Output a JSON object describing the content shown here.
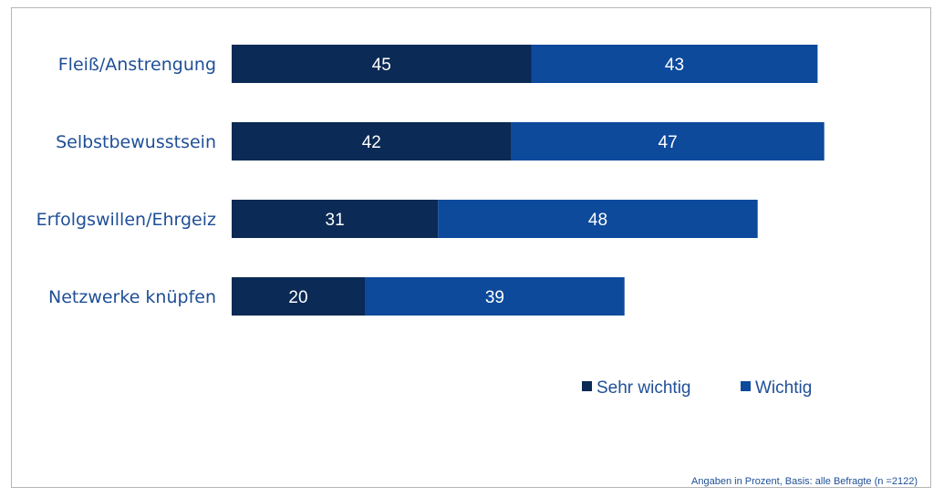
{
  "chart_data": {
    "type": "bar",
    "orientation": "horizontal",
    "stacked": true,
    "categories": [
      "Fleiß/Anstrengung",
      "Selbstbewusstsein",
      "Erfolgswillen/Ehrgeiz",
      "Netzwerke knüpfen"
    ],
    "series": [
      {
        "name": "Sehr wichtig",
        "values": [
          45,
          42,
          31,
          20
        ],
        "color": "#0b2a55"
      },
      {
        "name": "Wichtig",
        "values": [
          43,
          47,
          48,
          39
        ],
        "color": "#0d4a9c"
      }
    ],
    "xlim": [
      0,
      100
    ],
    "grid": false,
    "legend": "bottom-right",
    "footnote": "Angaben in Prozent, Basis: alle Befragte (n =2122)"
  }
}
